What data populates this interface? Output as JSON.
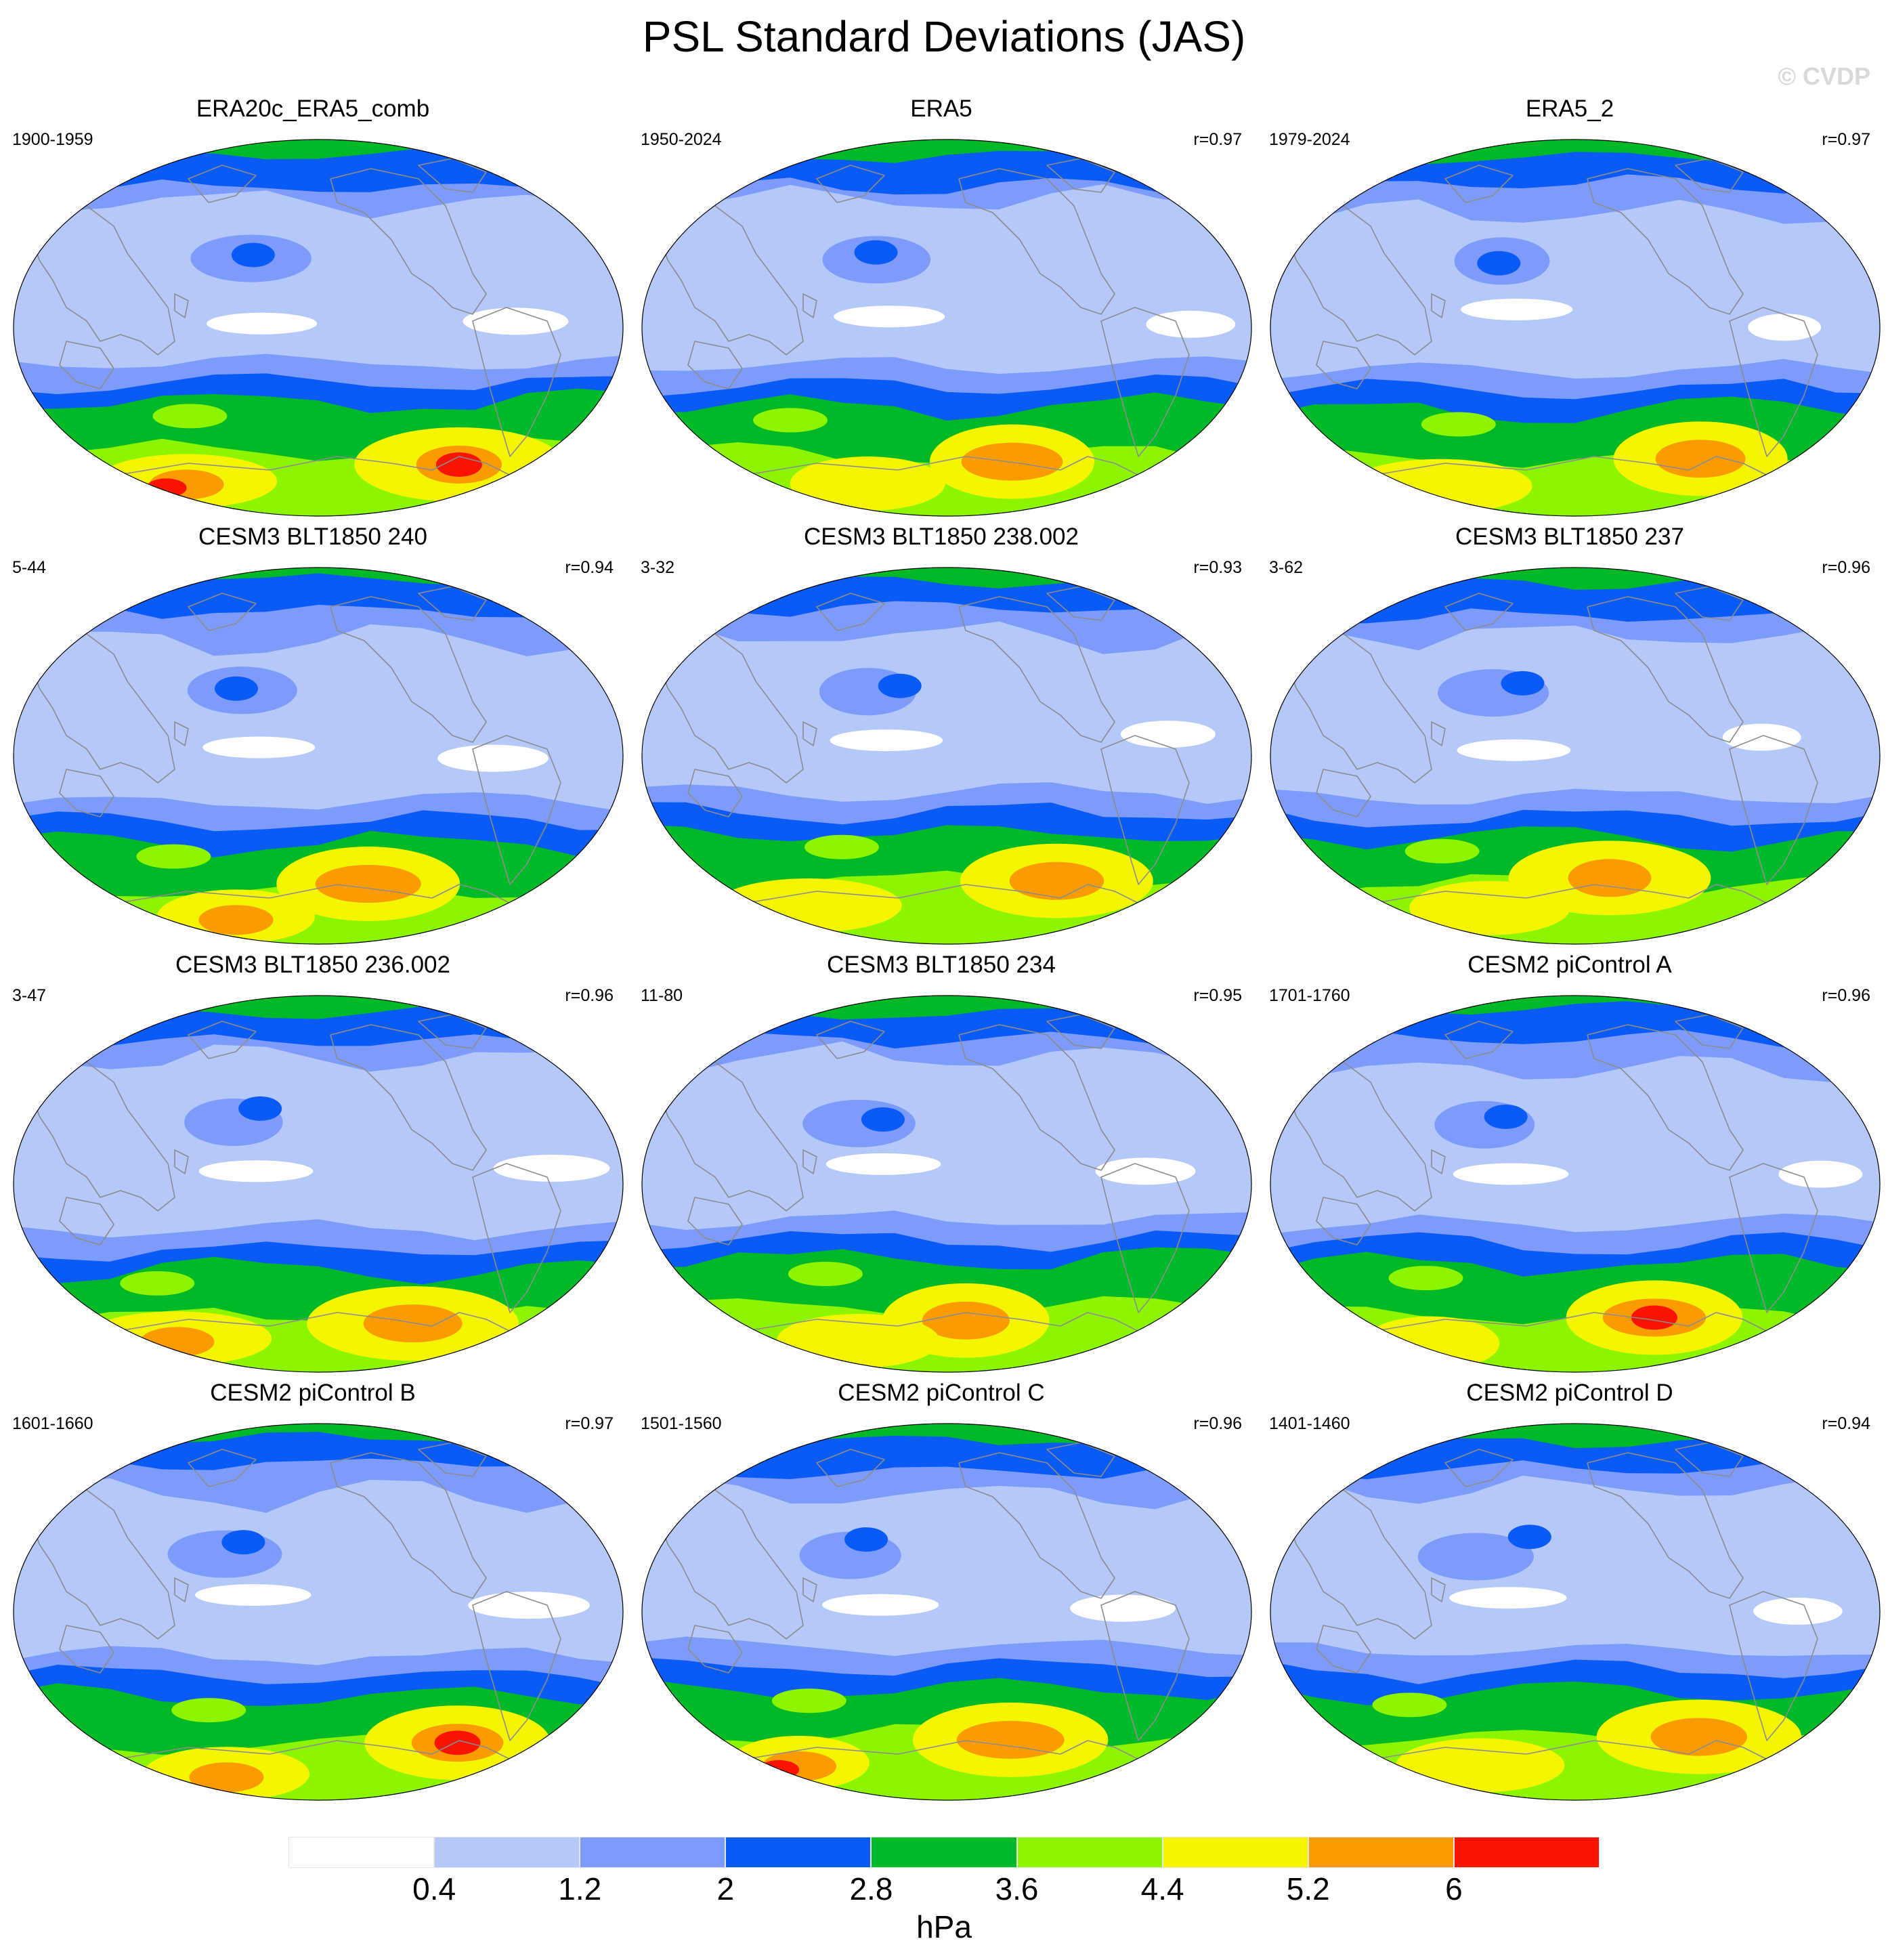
{
  "title": "PSL Standard Deviations (JAS)",
  "watermark": "© CVDP",
  "colorbar": {
    "colors": [
      "#ffffff",
      "#b4c8fa",
      "#7d9bfa",
      "#0a5af5",
      "#00b928",
      "#8ef500",
      "#f5f500",
      "#fa9b00",
      "#fa1400"
    ],
    "ticks": [
      "0.4",
      "1.2",
      "2",
      "2.8",
      "3.6",
      "4.4",
      "5.2",
      "6"
    ],
    "unit": "hPa"
  },
  "coastline_color": "#8c8c8c",
  "panels": [
    {
      "title": "ERA20c_ERA5_comb",
      "period": "1900-1959",
      "corr": "",
      "variant": 0
    },
    {
      "title": "ERA5",
      "period": "1950-2024",
      "corr": "r=0.97",
      "variant": 1
    },
    {
      "title": "ERA5_2",
      "period": "1979-2024",
      "corr": "r=0.97",
      "variant": 2
    },
    {
      "title": "CESM3 BLT1850 240",
      "period": "5-44",
      "corr": "r=0.94",
      "variant": 3
    },
    {
      "title": "CESM3 BLT1850 238.002",
      "period": "3-32",
      "corr": "r=0.93",
      "variant": 4
    },
    {
      "title": "CESM3 BLT1850 237",
      "period": "3-62",
      "corr": "r=0.96",
      "variant": 5
    },
    {
      "title": "CESM3 BLT1850 236.002",
      "period": "3-47",
      "corr": "r=0.96",
      "variant": 6
    },
    {
      "title": "CESM3 BLT1850 234",
      "period": "11-80",
      "corr": "r=0.95",
      "variant": 7
    },
    {
      "title": "CESM2 piControl A",
      "period": "1701-1760",
      "corr": "r=0.96",
      "variant": 8
    },
    {
      "title": "CESM2 piControl B",
      "period": "1601-1660",
      "corr": "r=0.97",
      "variant": 9
    },
    {
      "title": "CESM2 piControl C",
      "period": "1501-1560",
      "corr": "r=0.96",
      "variant": 10
    },
    {
      "title": "CESM2 piControl D",
      "period": "1401-1460",
      "corr": "r=0.94",
      "variant": 11
    }
  ]
}
